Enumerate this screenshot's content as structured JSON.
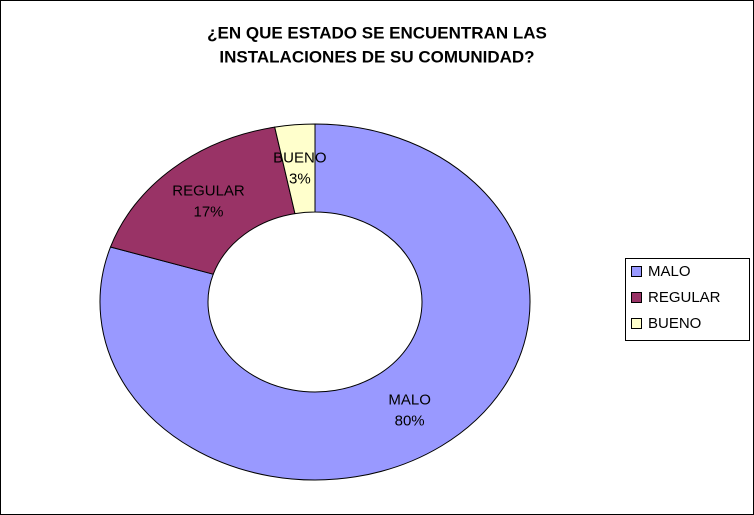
{
  "chart_data": {
    "type": "donut",
    "title": [
      "¿EN QUE ESTADO SE ENCUENTRAN LAS",
      "INSTALACIONES DE SU COMUNIDAD?"
    ],
    "categories": [
      "MALO",
      "REGULAR",
      "BUENO"
    ],
    "values": [
      80,
      17,
      3
    ],
    "value_labels": [
      "80%",
      "17%",
      "3%"
    ],
    "colors": [
      "#9999ff",
      "#993366",
      "#ffffcc"
    ],
    "legend": "right"
  }
}
